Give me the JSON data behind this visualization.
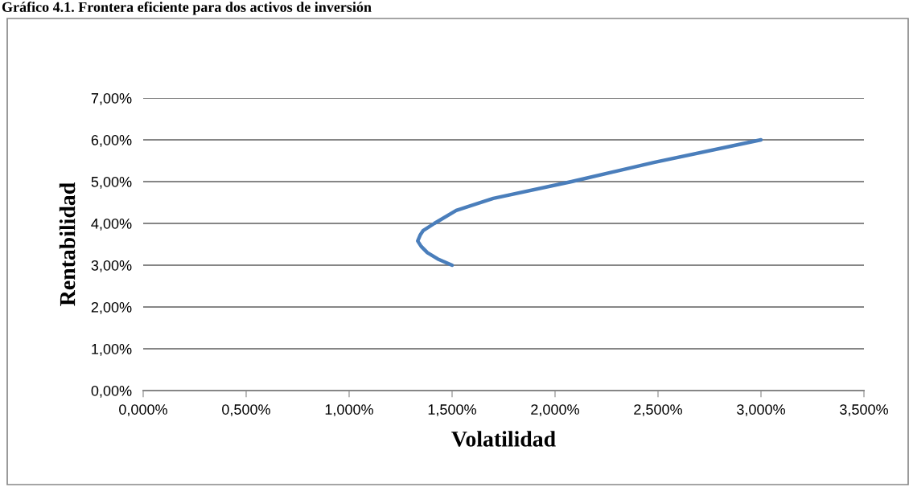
{
  "chart_data": {
    "type": "line",
    "title": "Gráfico 4.1. Frontera eficiente para dos activos de inversión",
    "xlabel": "Volatilidad",
    "ylabel": "Rentabilidad",
    "x": [
      1.5,
      1.43,
      1.38,
      1.35,
      1.333,
      1.345,
      1.36,
      1.414,
      1.52,
      1.7,
      2.08,
      2.48,
      3.0
    ],
    "series": [
      {
        "color": "#4a7ebb",
        "values": [
          3.0,
          3.15,
          3.3,
          3.45,
          3.58,
          3.72,
          3.83,
          4.0,
          4.31,
          4.6,
          5.0,
          5.46,
          6.0
        ]
      }
    ],
    "xlim": [
      0,
      3.5
    ],
    "xticks": [
      {
        "value": 0,
        "label": "0,000%"
      },
      {
        "value": 0.5,
        "label": "0,500%"
      },
      {
        "value": 1,
        "label": "1,000%"
      },
      {
        "value": 1.5,
        "label": "1,500%"
      },
      {
        "value": 2,
        "label": "2,000%"
      },
      {
        "value": 2.5,
        "label": "2,500%"
      },
      {
        "value": 3,
        "label": "3,000%"
      },
      {
        "value": 3.5,
        "label": "3,500%"
      }
    ],
    "ylim": [
      0,
      7
    ],
    "yticks": [
      {
        "value": 0,
        "label": "0,00%"
      },
      {
        "value": 1,
        "label": "1,00%"
      },
      {
        "value": 2,
        "label": "2,00%"
      },
      {
        "value": 3,
        "label": "3,00%"
      },
      {
        "value": 4,
        "label": "4,00%"
      },
      {
        "value": 5,
        "label": "5,00%"
      },
      {
        "value": 6,
        "label": "6,00%"
      },
      {
        "value": 7,
        "label": "7,00%"
      }
    ],
    "grid": "y",
    "marker": "none",
    "line_style": "solid",
    "legend": false
  }
}
